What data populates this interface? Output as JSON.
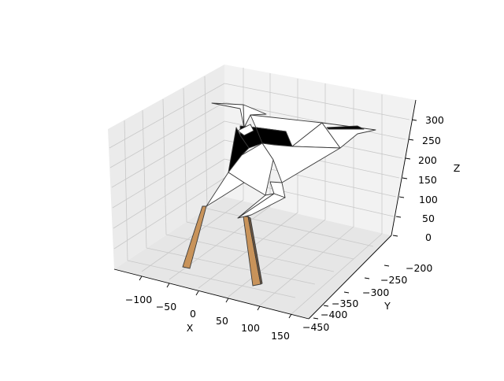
{
  "figure": {
    "x_ticks": [
      "−100",
      "−50",
      "0",
      "50",
      "100",
      "150"
    ],
    "y_ticks": [
      "−200",
      "−250",
      "−300",
      "−350",
      "−400",
      "−450"
    ],
    "z_ticks": [
      "0",
      "50",
      "100",
      "150",
      "200",
      "250",
      "300"
    ],
    "x_label": "X",
    "y_label": "Y",
    "z_label": "Z"
  },
  "colors": {
    "pane_left": "#ebebeb",
    "pane_back": "#f2f2f2",
    "pane_floor": "#e6e6e6",
    "grid": "#c8c8c8",
    "surface": "#ffffff",
    "shadow": "#000000",
    "edge": "#3a3a3a",
    "legs": "#c8935a"
  }
}
